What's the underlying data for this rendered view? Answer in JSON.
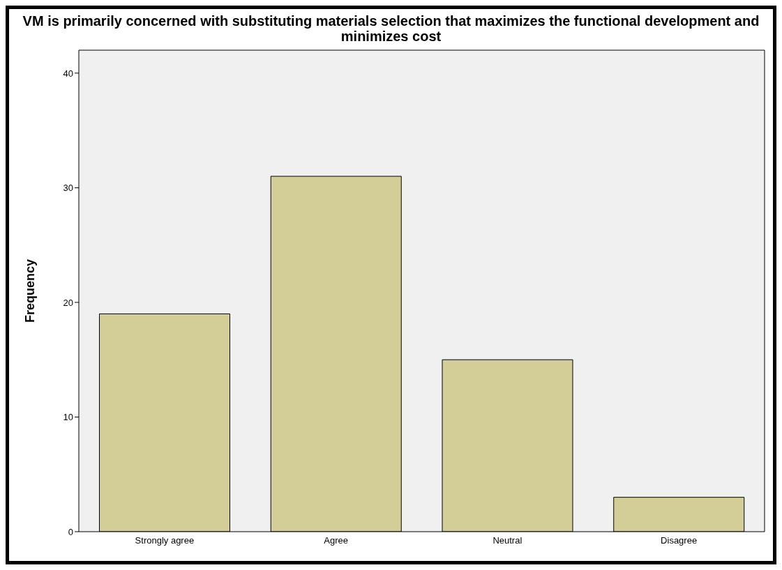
{
  "chart_data": {
    "type": "bar",
    "title": "VM is primarily concerned with substituting materials selection that maximizes the functional development and minimizes cost",
    "ylabel": "Frequency",
    "categories": [
      "Strongly agree",
      "Agree",
      "Neutral",
      "Disagree"
    ],
    "values": [
      19,
      31,
      15,
      3
    ],
    "color": "#d3ce97",
    "ylim": [
      0,
      42
    ],
    "yticks": [
      0,
      10,
      20,
      30,
      40
    ],
    "grid": false,
    "legend": false
  }
}
